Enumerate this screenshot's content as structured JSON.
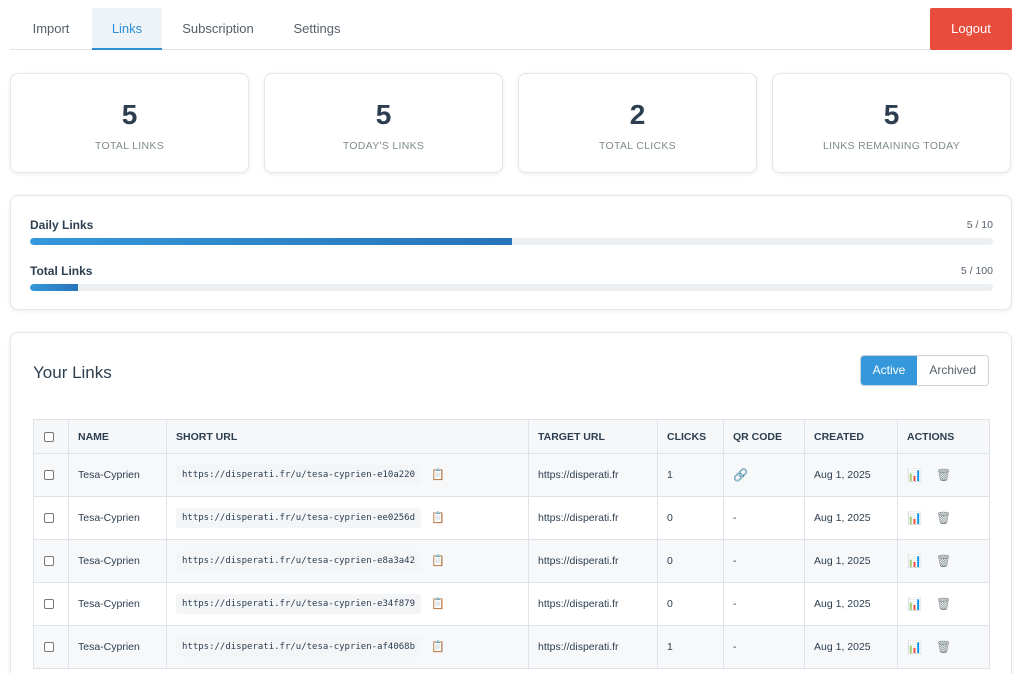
{
  "nav": {
    "tabs": [
      {
        "label": "Import"
      },
      {
        "label": "Links"
      },
      {
        "label": "Subscription"
      },
      {
        "label": "Settings"
      }
    ],
    "logout_label": "Logout"
  },
  "stats": [
    {
      "value": "5",
      "label": "TOTAL LINKS"
    },
    {
      "value": "5",
      "label": "TODAY'S LINKS"
    },
    {
      "value": "2",
      "label": "TOTAL CLICKS"
    },
    {
      "value": "5",
      "label": "LINKS REMAINING TODAY"
    }
  ],
  "progress": {
    "daily": {
      "label": "Daily Links",
      "count": "5 / 10",
      "fraction": 0.5
    },
    "total": {
      "label": "Total Links",
      "count": "5 / 100",
      "fraction": 0.05
    }
  },
  "links": {
    "title": "Your Links",
    "toggle": {
      "active": "Active",
      "archived": "Archived"
    },
    "columns": [
      "NAME",
      "SHORT URL",
      "TARGET URL",
      "CLICKS",
      "QR CODE",
      "CREATED",
      "ACTIONS"
    ],
    "rows": [
      {
        "name": "Tesa-Cyprien",
        "short_url": "https://disperati.fr/u/tesa-cyprien-e10a220",
        "target": "https://disperati.fr",
        "clicks": "1",
        "qr": "",
        "created": "Aug 1, 2025"
      },
      {
        "name": "Tesa-Cyprien",
        "short_url": "https://disperati.fr/u/tesa-cyprien-ee0256d",
        "target": "https://disperati.fr",
        "clicks": "0",
        "qr": "-",
        "created": "Aug 1, 2025"
      },
      {
        "name": "Tesa-Cyprien",
        "short_url": "https://disperati.fr/u/tesa-cyprien-e8a3a42",
        "target": "https://disperati.fr",
        "clicks": "0",
        "qr": "-",
        "created": "Aug 1, 2025"
      },
      {
        "name": "Tesa-Cyprien",
        "short_url": "https://disperati.fr/u/tesa-cyprien-e34f879",
        "target": "https://disperati.fr",
        "clicks": "0",
        "qr": "-",
        "created": "Aug 1, 2025"
      },
      {
        "name": "Tesa-Cyprien",
        "short_url": "https://disperati.fr/u/tesa-cyprien-af4068b",
        "target": "https://disperati.fr",
        "clicks": "1",
        "qr": "-",
        "created": "Aug 1, 2025"
      }
    ]
  },
  "icons": {
    "copy": "clipboard-icon",
    "qr": "link-icon",
    "stats": "bar-chart-icon",
    "delete": "trash-icon"
  },
  "colors": {
    "accent": "#3498db",
    "logout": "#e74c3c"
  }
}
